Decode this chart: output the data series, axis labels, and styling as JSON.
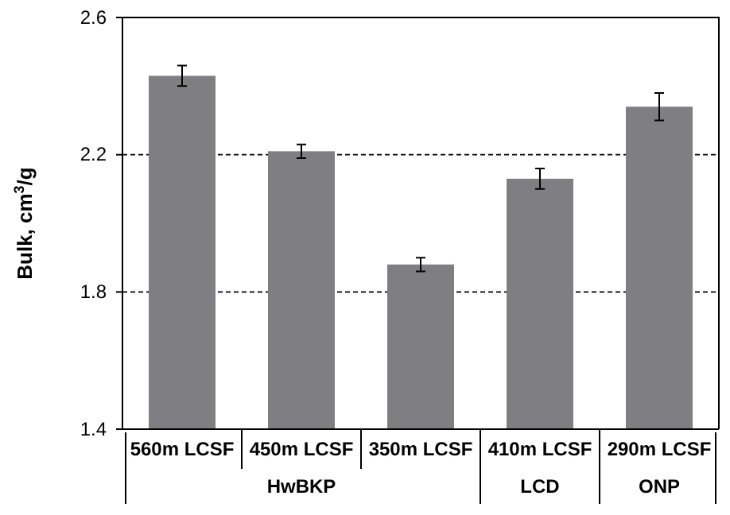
{
  "chart_data": {
    "type": "bar",
    "ylabel": "Bulk, cm$^{3}$/g",
    "categories": [
      "560m LCSF",
      "450m LCSF",
      "350m LCSF",
      "410m LCSF",
      "290m LCSF"
    ],
    "values": [
      2.43,
      2.21,
      1.88,
      2.13,
      2.34
    ],
    "errors": [
      0.03,
      0.02,
      0.02,
      0.03,
      0.04
    ],
    "color": "#7e7e83",
    "ylim": [
      1.4,
      2.6
    ],
    "yticks": [
      1.4,
      1.8,
      2.2,
      2.6
    ],
    "grid": "y",
    "annotations": [
      "HwBKP",
      "LCD",
      "ONP"
    ]
  }
}
